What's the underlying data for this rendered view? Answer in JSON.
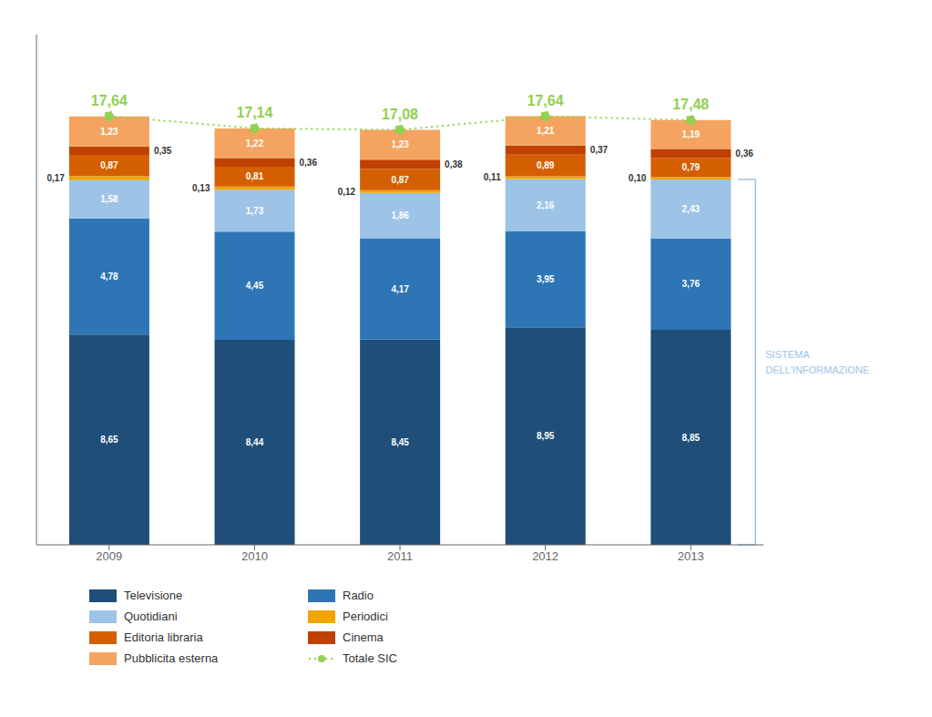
{
  "chart_data": {
    "type": "bar",
    "stacked": true,
    "categories": [
      "2009",
      "2010",
      "2011",
      "2012",
      "2013"
    ],
    "series": [
      {
        "name": "Televisione",
        "color": "#1f4e79",
        "values": [
          8.65,
          8.44,
          8.45,
          8.95,
          8.85
        ],
        "value_labels": [
          "8,65",
          "8,44",
          "8,45",
          "8,95",
          "8,85"
        ]
      },
      {
        "name": "Radio",
        "color": "#2e75b6",
        "values": [
          4.78,
          4.45,
          4.17,
          3.95,
          3.76
        ],
        "value_labels": [
          "4,78",
          "4,45",
          "4,17",
          "3,95",
          "3,76"
        ]
      },
      {
        "name": "Quotidiani",
        "color": "#9dc3e6",
        "values": [
          1.58,
          1.73,
          1.86,
          2.16,
          2.43
        ],
        "value_labels": [
          "1,58",
          "1,73",
          "1,86",
          "2,16",
          "2,43"
        ]
      },
      {
        "name": "Periodici",
        "color": "#f0a500",
        "values": [
          0.17,
          0.13,
          0.12,
          0.11,
          0.1
        ],
        "value_labels": [
          "0,17",
          "0,13",
          "0,12",
          "0,11",
          "0,10"
        ]
      },
      {
        "name": "Editoria libraria",
        "color": "#d45f00",
        "values": [
          0.87,
          0.81,
          0.87,
          0.89,
          0.79
        ],
        "value_labels": [
          "0,87",
          "0,81",
          "0,87",
          "0,89",
          "0,79"
        ]
      },
      {
        "name": "Cinema",
        "color": "#c04000",
        "values": [
          0.35,
          0.36,
          0.38,
          0.37,
          0.36
        ],
        "value_labels": [
          "0,35",
          "0,36",
          "0,38",
          "0,37",
          "0,36"
        ]
      },
      {
        "name": "Pubblicita esterna",
        "color": "#f4a460",
        "values": [
          1.23,
          1.22,
          1.23,
          1.21,
          1.19
        ],
        "value_labels": [
          "1,23",
          "1,22",
          "1,23",
          "1,21",
          "1,19"
        ]
      },
      {
        "name": "Totale SIC",
        "type": "line",
        "color": "#92d050",
        "line_style": "dotted",
        "marker": "circle",
        "values": [
          17.64,
          17.14,
          17.08,
          17.64,
          17.48
        ],
        "value_labels": [
          "17,64",
          "17,14",
          "17,08",
          "17,64",
          "17,48"
        ]
      }
    ],
    "ylim": [
      0,
      21
    ],
    "grid": false,
    "data_labels": true,
    "tick_labels": "x",
    "legend": "bottom",
    "annotations": [
      {
        "text": "SISTEMA\nDELL'INFORMAZIONE",
        "color": "#9dc3e6"
      }
    ]
  }
}
